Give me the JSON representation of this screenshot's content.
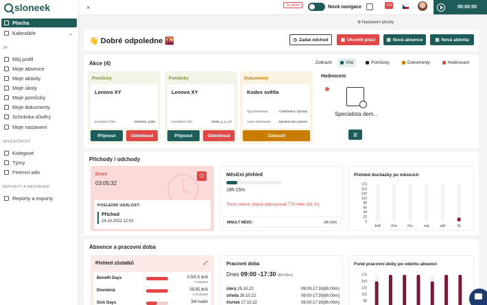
{
  "app": {
    "logo": "sloneek"
  },
  "sidebar": {
    "items": [
      {
        "label": "Plocha",
        "active": true
      },
      {
        "label": "Kalendáře"
      }
    ],
    "section_ja": "JÁ",
    "ja_items": [
      "Můj profil",
      "Moje absence",
      "Moje aktivity",
      "Moje úkoly",
      "Moje pomůcky",
      "Moje dokumenty",
      "Schránka důvěry",
      "Moje nastavení"
    ],
    "section_company": "SPOLEČNOST",
    "company_items": [
      "Kolegové",
      "Týmy",
      "Firemní wiki"
    ],
    "section_reports": "REPORTY A NASTAVENÍ",
    "report_items": [
      "Reporty a exporty"
    ]
  },
  "topbar": {
    "close": "×",
    "admin_badge": "Ta admin",
    "toggle_label": "Nová navigace",
    "gift_count": "123",
    "timer": "00:00:00",
    "settings_label": "Nastavení plochy"
  },
  "greeting": "Dobré odpoledne",
  "greeting_emoji_left": "👋",
  "greeting_emoji_right": "🌇",
  "actions": {
    "zadat": "Zadat odchod",
    "ukoncit": "Ukončit práci",
    "absence": "Nová absence",
    "aktivita": "Nová aktivita"
  },
  "akce": {
    "title": "Akce (4)",
    "filter_label": "Zobrazit",
    "filters": [
      {
        "label": "Vše",
        "color": "#1d5c58"
      },
      {
        "label": "Pomůcky",
        "color": "#222222"
      },
      {
        "label": "Dokumenty",
        "color": "#c87c00"
      },
      {
        "label": "Hodnocení",
        "color": "#e04848"
      }
    ],
    "cards": [
      {
        "type": "Pomůcky",
        "name": "Lenovo XY",
        "row1_label": "Inventární číslo",
        "row1_value": "SSSSSS_2345",
        "btn1": "Přijmout",
        "btn2": "Odmítnout"
      },
      {
        "type": "Pomůcky",
        "name": "Lenovo XY",
        "row1_label": "Inventární číslo",
        "row1_value": "SO85_2_2_XY",
        "btn1": "Přijmout",
        "btn2": "Odmítnout"
      },
      {
        "type": "Dokumenty",
        "name": "Kodex světla",
        "row1_label": "Typ dokumentu",
        "row1_value": "Celofiremní / týmový",
        "row2_label": "Autor dokumentu",
        "row2_value": "Dynamit Jan (owner)",
        "btn1": "Zobrazit"
      }
    ],
    "hodnoceni": {
      "title": "Hodnocení",
      "name": "Specialista dem..."
    }
  },
  "prichody": {
    "title": "Příchody / odchody",
    "today_label": "Dnes",
    "today_time": "03:05:32",
    "last_event_label": "POSLEDNÍ UDÁLOST:",
    "last_event_name": "Příchod",
    "last_event_time": "24.10.2022 12:02",
    "month_title": "Měsíční přehled",
    "month_progress": 0.2,
    "month_hours": "18h:15m",
    "month_remaining": "Tento měsíc zbývá odpracovat 77h:44m (81 %)",
    "prev_month_label": "MINULÝ MĚSÍC:",
    "prev_month_value": "19h:15m",
    "attendance_title": "Přehled docházky po měsících"
  },
  "chart_data": [
    {
      "type": "bar",
      "title": "Přehled docházky po měsících",
      "categories": [
        "kvě",
        "čvn",
        "čvc",
        "srp",
        "zář",
        "říj"
      ],
      "ylim": [
        0,
        176
      ],
      "yticks": [
        0,
        22,
        44,
        66,
        88,
        110,
        132,
        154,
        176
      ],
      "series": [
        {
          "values": [
            0,
            0,
            0,
            0,
            0,
            18
          ]
        }
      ]
    },
    {
      "type": "bar",
      "title": "Fond pracovní doby po odečtu absencí",
      "yticks": [
        88,
        110,
        132,
        154,
        176
      ],
      "ylim": [
        0,
        176
      ],
      "series": [
        {
          "values": [
            154,
            176,
            176,
            176,
            154,
            176,
            176
          ]
        }
      ]
    }
  ],
  "absence": {
    "title": "Absence a pracovní doba",
    "zustatky_title": "Přehled zůstatků",
    "rows": [
      {
        "name": "Benefit Days",
        "value": "0,5/0,5 dnů",
        "sub": "0.5zbatek",
        "fill": 1
      },
      {
        "name": "Dovolená",
        "value": "35/35 dnů",
        "sub": "0.20zbatek",
        "fill": 1
      },
      {
        "name": "Sick Days",
        "value": "3/6 hodin",
        "sub": "",
        "fill": 0.5
      }
    ],
    "pracovni_title": "Pracovní doba",
    "pracovni_today": "Dnes",
    "pracovni_range": "09:00 -17:30",
    "pracovni_hours": "(8h:00m)",
    "days": [
      {
        "day": "úterý",
        "date": "25.10.22",
        "time": "09:00-17:30(8h:00m)"
      },
      {
        "day": "středa",
        "date": "26.10.22",
        "time": "09:00-17:30(8h:00m)"
      },
      {
        "day": "čtvrtek",
        "date": "27.10.22",
        "time": "09:00-17:30(8h:00m)"
      }
    ],
    "fond_title": "Fond pracovní doby po odečtu absencí"
  }
}
